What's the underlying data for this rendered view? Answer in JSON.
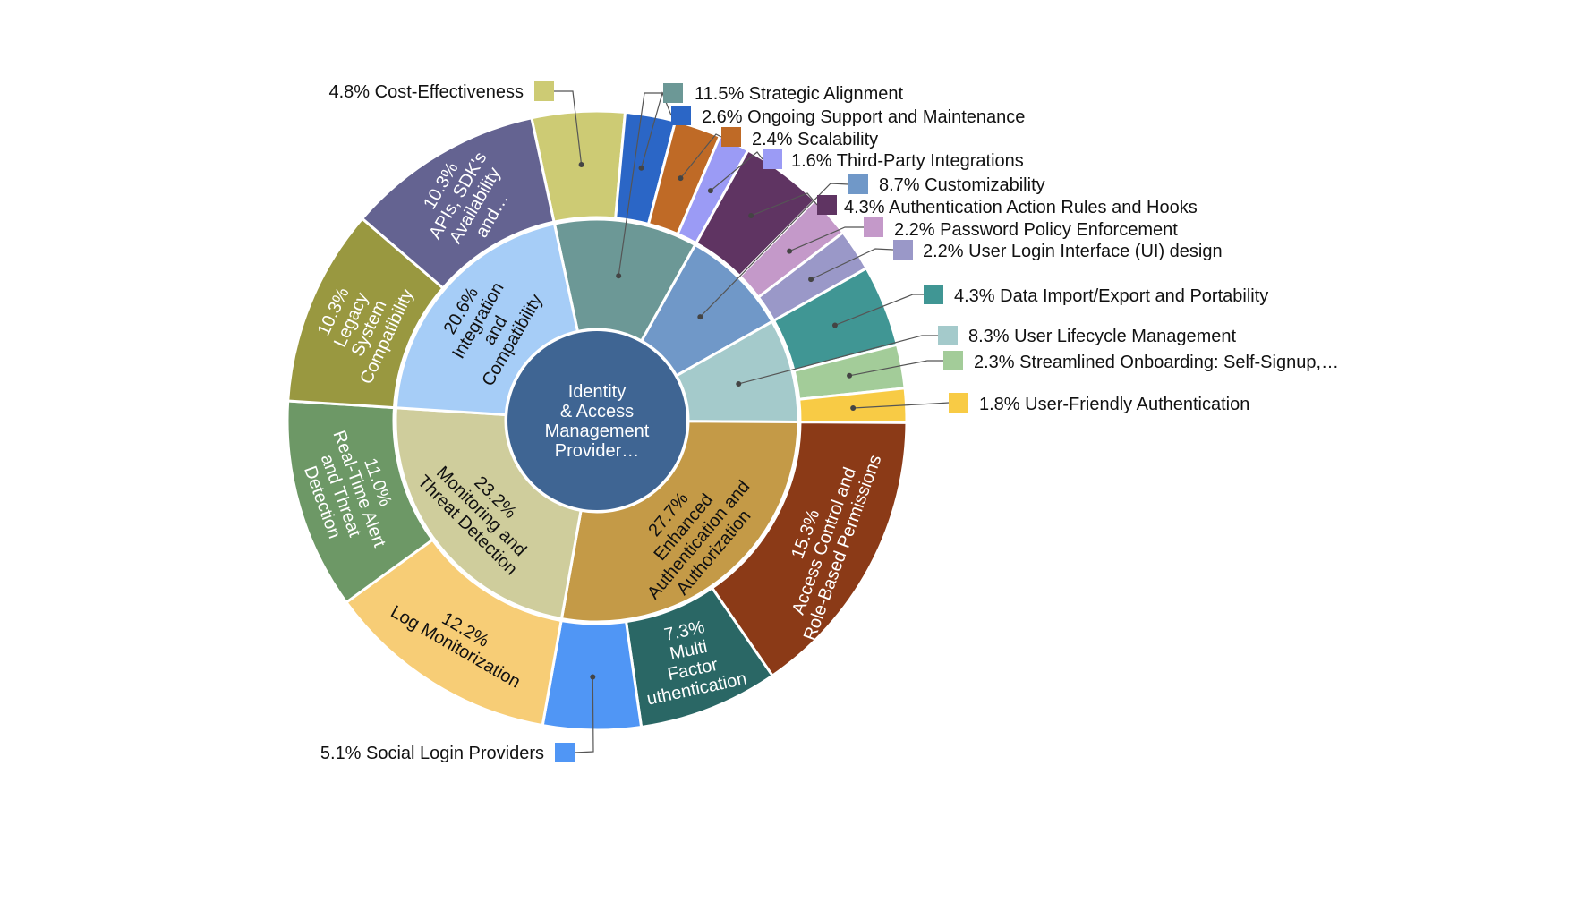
{
  "chart_data": {
    "type": "pie",
    "subtype": "sunburst",
    "title": "",
    "root": {
      "id": "root",
      "lines": [
        "Identity",
        "& Access",
        "Management",
        "Provider…"
      ],
      "color": "#3f6593",
      "text_color": "#ffffff"
    },
    "nodes": [
      {
        "id": "strategic",
        "parent": "root",
        "value": 11.5,
        "label": "11.5% Strategic Alignment",
        "color": "#6c9896"
      },
      {
        "id": "custom",
        "parent": "root",
        "value": 8.7,
        "label": "8.7% Customizability",
        "color": "#7098c8"
      },
      {
        "id": "lifecycle",
        "parent": "root",
        "value": 8.3,
        "label": "8.3% User Lifecycle Management",
        "color": "#a4cacb"
      },
      {
        "id": "enhanced",
        "parent": "root",
        "value": 27.7,
        "lines": [
          "27.7%",
          "Enhanced",
          "Authentication and",
          "Authorization"
        ],
        "color": "#c49a47",
        "text_color": "#111111"
      },
      {
        "id": "monitoring",
        "parent": "root",
        "value": 23.2,
        "lines": [
          "23.2%",
          "Monitoring and",
          "Threat Detection"
        ],
        "color": "#cfcd9c",
        "text_color": "#111111"
      },
      {
        "id": "integration",
        "parent": "root",
        "value": 20.6,
        "lines": [
          "20.6%",
          "Integration",
          "and",
          "Compatibility"
        ],
        "color": "#a6cdf7",
        "text_color": "#111111"
      },
      {
        "id": "cost",
        "parent": "strategic",
        "value": 4.8,
        "label": "4.8% Cost-Effectiveness",
        "color": "#cdcb74"
      },
      {
        "id": "support",
        "parent": "strategic",
        "value": 2.6,
        "label": "2.6% Ongoing Support and Maintenance",
        "color": "#2b66c6"
      },
      {
        "id": "scal",
        "parent": "strategic",
        "value": 2.4,
        "label": "2.4% Scalability",
        "color": "#bf6a26"
      },
      {
        "id": "third",
        "parent": "strategic",
        "value": 1.6,
        "label": "1.6% Third-Party Integrations",
        "color": "#9b9bf5"
      },
      {
        "id": "hooks",
        "parent": "custom",
        "value": 4.3,
        "label": "4.3% Authentication Action Rules and Hooks",
        "color": "#5f3462"
      },
      {
        "id": "password",
        "parent": "custom",
        "value": 2.2,
        "label": "2.2% Password Policy Enforcement",
        "color": "#c499c9"
      },
      {
        "id": "ui",
        "parent": "custom",
        "value": 2.2,
        "label": "2.2% User Login Interface (UI) design",
        "color": "#9a98c8"
      },
      {
        "id": "import",
        "parent": "lifecycle",
        "value": 4.3,
        "label": "4.3% Data Import/Export and Portability",
        "color": "#409694"
      },
      {
        "id": "onboard",
        "parent": "lifecycle",
        "value": 2.3,
        "label": "2.3% Streamlined Onboarding: Self-Signup,…",
        "color": "#a3cc99"
      },
      {
        "id": "friendly",
        "parent": "lifecycle",
        "value": 1.8,
        "label": "1.8% User-Friendly Authentication",
        "color": "#f8cb45"
      },
      {
        "id": "access",
        "parent": "enhanced",
        "value": 15.3,
        "lines": [
          "15.3%",
          "Access Control and",
          "Role-Based Permissions"
        ],
        "color": "#8b3a17",
        "text_color": "#ffffff"
      },
      {
        "id": "mfa",
        "parent": "enhanced",
        "value": 7.3,
        "lines": [
          "7.3%",
          "Multi",
          "Factor",
          "uthentication"
        ],
        "color": "#2a6765",
        "text_color": "#ffffff"
      },
      {
        "id": "social",
        "parent": "enhanced",
        "value": 5.1,
        "label": "5.1% Social Login Providers",
        "color": "#5096f5"
      },
      {
        "id": "log",
        "parent": "monitoring",
        "value": 12.2,
        "lines": [
          "12.2%",
          "Log Monitorization"
        ],
        "color": "#f7cd76",
        "text_color": "#111111"
      },
      {
        "id": "realtime",
        "parent": "monitoring",
        "value": 11.0,
        "lines": [
          "11.0%",
          "Real-Time Alert",
          "and Threat",
          "Detection"
        ],
        "color": "#6d9866",
        "text_color": "#ffffff"
      },
      {
        "id": "legacy",
        "parent": "integration",
        "value": 10.3,
        "lines": [
          "10.3%",
          "Legacy",
          "System",
          "Compatibility"
        ],
        "color": "#999840",
        "text_color": "#ffffff"
      },
      {
        "id": "apis",
        "parent": "integration",
        "value": 10.3,
        "lines": [
          "10.3%",
          "APIs, SDK's",
          "Availability",
          "and…"
        ],
        "color": "#646391",
        "text_color": "#ffffff"
      }
    ]
  }
}
